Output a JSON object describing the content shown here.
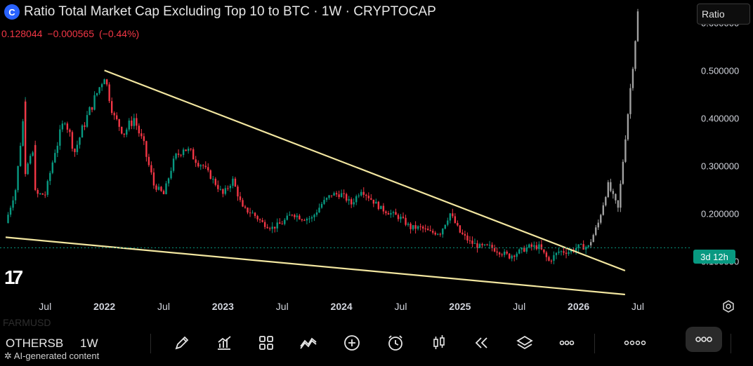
{
  "header": {
    "logo_letter": "C",
    "title": "Ratio Total Market Cap Excluding Top 10 to BTC · 1W · CRYPTOCAP",
    "ohlc": [
      "0.128044",
      "−0.000565",
      "(−0.44%)"
    ]
  },
  "scale_button": "Ratio",
  "countdown": "3d 12h",
  "ghost_symbol": "FARMUSD",
  "toolbar": {
    "symbol": "OTHERSB",
    "timeframe": "1W",
    "icons": [
      "pencil-icon",
      "chart-bars-icon",
      "grid-icon",
      "indicator-icon",
      "add-circle-icon",
      "alarm-icon",
      "candles-icon",
      "replay-icon",
      "layers-icon",
      "more-icon",
      "object-tree-icon",
      "pill-icon"
    ]
  },
  "footer_note": "✲ AI-generated content",
  "colors": {
    "up": "#089981",
    "down": "#f23645",
    "projection": "#a0a0a0",
    "trendline": "#f2e6a0",
    "axis_text": "#d1d4dc"
  },
  "chart_data": {
    "type": "candlestick",
    "title": "Ratio Total Market Cap Excluding Top 10 to BTC · 1W · CRYPTOCAP",
    "x_tick_labels": [
      "Jul",
      "2022",
      "Jul",
      "2023",
      "Jul",
      "2024",
      "Jul",
      "2025",
      "Jul",
      "2026",
      "Jul"
    ],
    "x_ticks": [
      "2021-07",
      "2022-01",
      "2022-07",
      "2023-01",
      "2023-07",
      "2024-01",
      "2024-07",
      "2025-01",
      "2025-07",
      "2026-01",
      "2026-07"
    ],
    "y_tick_labels": [
      "0.600000",
      "0.500000",
      "0.400000",
      "0.300000",
      "0.200000",
      "0.100000"
    ],
    "y_ticks": [
      0.6,
      0.5,
      0.4,
      0.3,
      0.2,
      0.1
    ],
    "ylim": [
      0.03,
      0.63
    ],
    "last_price": 0.128044,
    "change": -0.000565,
    "change_pct": -0.44,
    "series": [
      {
        "points": [
          [
            "2021-03",
            0.18
          ],
          [
            "2021-04",
            0.25
          ],
          [
            "2021-05",
            0.44
          ],
          [
            "2021-05",
            0.29
          ],
          [
            "2021-06",
            0.34
          ],
          [
            "2021-06",
            0.24
          ],
          [
            "2021-07",
            0.24
          ],
          [
            "2021-08",
            0.33
          ],
          [
            "2021-09",
            0.4
          ],
          [
            "2021-10",
            0.33
          ],
          [
            "2021-11",
            0.39
          ],
          [
            "2021-12",
            0.44
          ],
          [
            "2022-01",
            0.49
          ],
          [
            "2022-02",
            0.4
          ],
          [
            "2022-03",
            0.37
          ],
          [
            "2022-04",
            0.4
          ],
          [
            "2022-05",
            0.34
          ],
          [
            "2022-06",
            0.26
          ],
          [
            "2022-07",
            0.24
          ],
          [
            "2022-08",
            0.31
          ],
          [
            "2022-09",
            0.34
          ],
          [
            "2022-10",
            0.32
          ],
          [
            "2022-11",
            0.3
          ],
          [
            "2022-12",
            0.27
          ],
          [
            "2023-01",
            0.24
          ],
          [
            "2023-02",
            0.27
          ],
          [
            "2023-03",
            0.21
          ],
          [
            "2023-04",
            0.2
          ],
          [
            "2023-05",
            0.18
          ],
          [
            "2023-06",
            0.17
          ],
          [
            "2023-07",
            0.18
          ],
          [
            "2023-08",
            0.2
          ],
          [
            "2023-09",
            0.19
          ],
          [
            "2023-10",
            0.19
          ],
          [
            "2023-11",
            0.22
          ],
          [
            "2023-12",
            0.24
          ],
          [
            "2024-01",
            0.24
          ],
          [
            "2024-02",
            0.22
          ],
          [
            "2024-03",
            0.25
          ],
          [
            "2024-04",
            0.23
          ],
          [
            "2024-05",
            0.21
          ],
          [
            "2024-06",
            0.2
          ],
          [
            "2024-07",
            0.19
          ],
          [
            "2024-08",
            0.17
          ],
          [
            "2024-09",
            0.17
          ],
          [
            "2024-10",
            0.16
          ],
          [
            "2024-11",
            0.16
          ],
          [
            "2024-12",
            0.2
          ],
          [
            "2025-01",
            0.16
          ],
          [
            "2025-02",
            0.14
          ],
          [
            "2025-03",
            0.13
          ],
          [
            "2025-04",
            0.13
          ],
          [
            "2025-05",
            0.12
          ],
          [
            "2025-06",
            0.11
          ],
          [
            "2025-07",
            0.12
          ],
          [
            "2025-08",
            0.13
          ],
          [
            "2025-09",
            0.13
          ],
          [
            "2025-10",
            0.1
          ],
          [
            "2025-11",
            0.12
          ],
          [
            "2025-12",
            0.12
          ],
          [
            "2026-01",
            0.13
          ],
          [
            "2026-02",
            0.13
          ],
          [
            "2026-03",
            0.18
          ],
          [
            "2026-04",
            0.26
          ],
          [
            "2026-05",
            0.21
          ],
          [
            "2026-06",
            0.41
          ],
          [
            "2026-07",
            0.62
          ]
        ]
      }
    ],
    "trendlines": [
      {
        "from": [
          "2021-03",
          0.15
        ],
        "to": [
          "2026-05",
          0.03
        ]
      },
      {
        "from": [
          "2022-01",
          0.5
        ],
        "to": [
          "2026-05",
          0.08
        ]
      }
    ],
    "grid": false,
    "legend": "none"
  }
}
